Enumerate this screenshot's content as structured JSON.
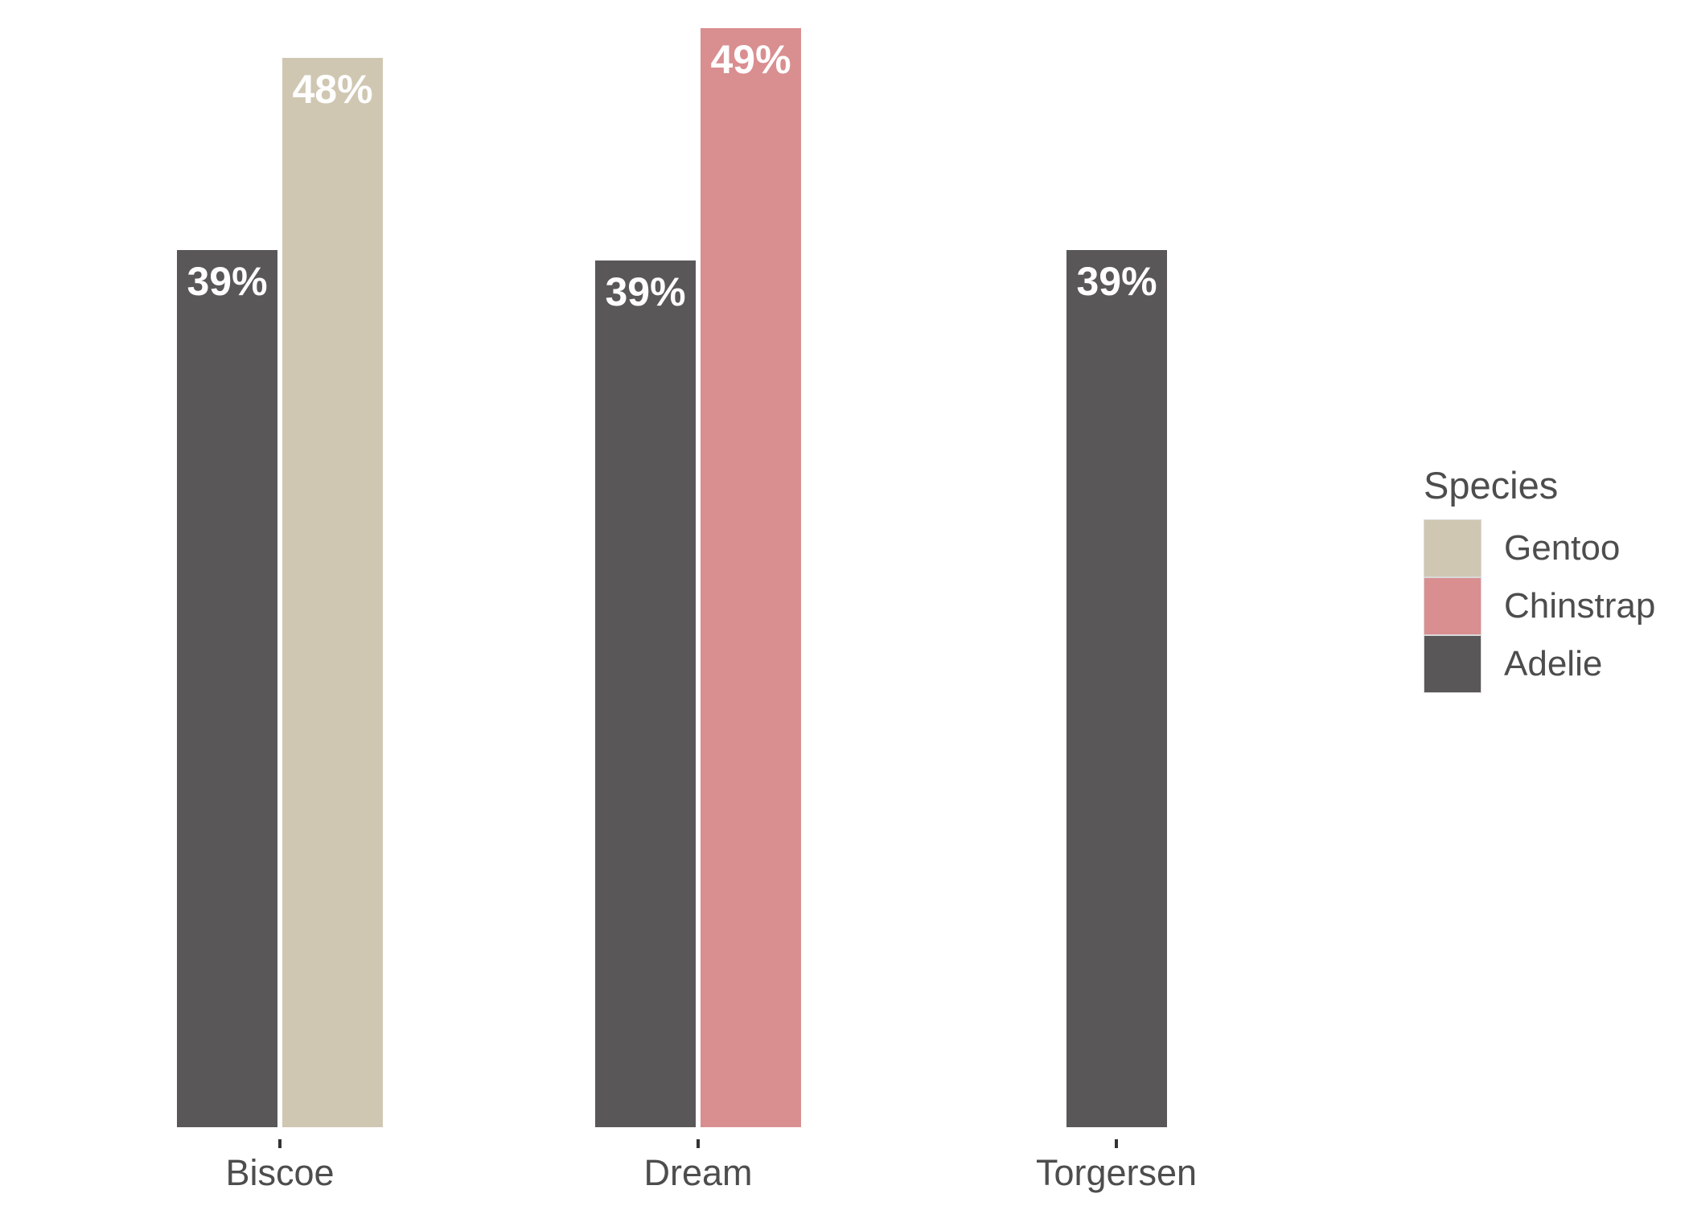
{
  "chart_data": {
    "type": "bar",
    "title": "",
    "categories": [
      "Biscoe",
      "Dream",
      "Torgersen"
    ],
    "xlabel": "",
    "ylabel": "",
    "value_axis": {
      "visible": false,
      "range": [
        0,
        50
      ]
    },
    "grid": "off",
    "legend_position": "right",
    "bar_label_color": "#ffffff",
    "series": [
      {
        "name": "Adelie",
        "color": "#5A5759",
        "values": [
          38.98,
          38.5,
          38.95
        ],
        "labels": [
          "39%",
          "39%",
          "39%"
        ]
      },
      {
        "name": "Gentoo",
        "color": "#D0C7B2",
        "values": [
          47.5,
          null,
          null
        ],
        "labels": [
          "48%",
          null,
          null
        ]
      },
      {
        "name": "Chinstrap",
        "color": "#D98E90",
        "values": [
          null,
          48.83,
          null
        ],
        "labels": [
          null,
          "49%",
          null
        ]
      }
    ]
  },
  "legend": {
    "title": "Species",
    "entries": [
      {
        "label": "Gentoo",
        "color": "#D0C7B2"
      },
      {
        "label": "Chinstrap",
        "color": "#D98E90"
      },
      {
        "label": "Adelie",
        "color": "#5A5759"
      }
    ]
  },
  "axis": {
    "tick_color": "#333333",
    "label_color": "#4d4d4d"
  }
}
